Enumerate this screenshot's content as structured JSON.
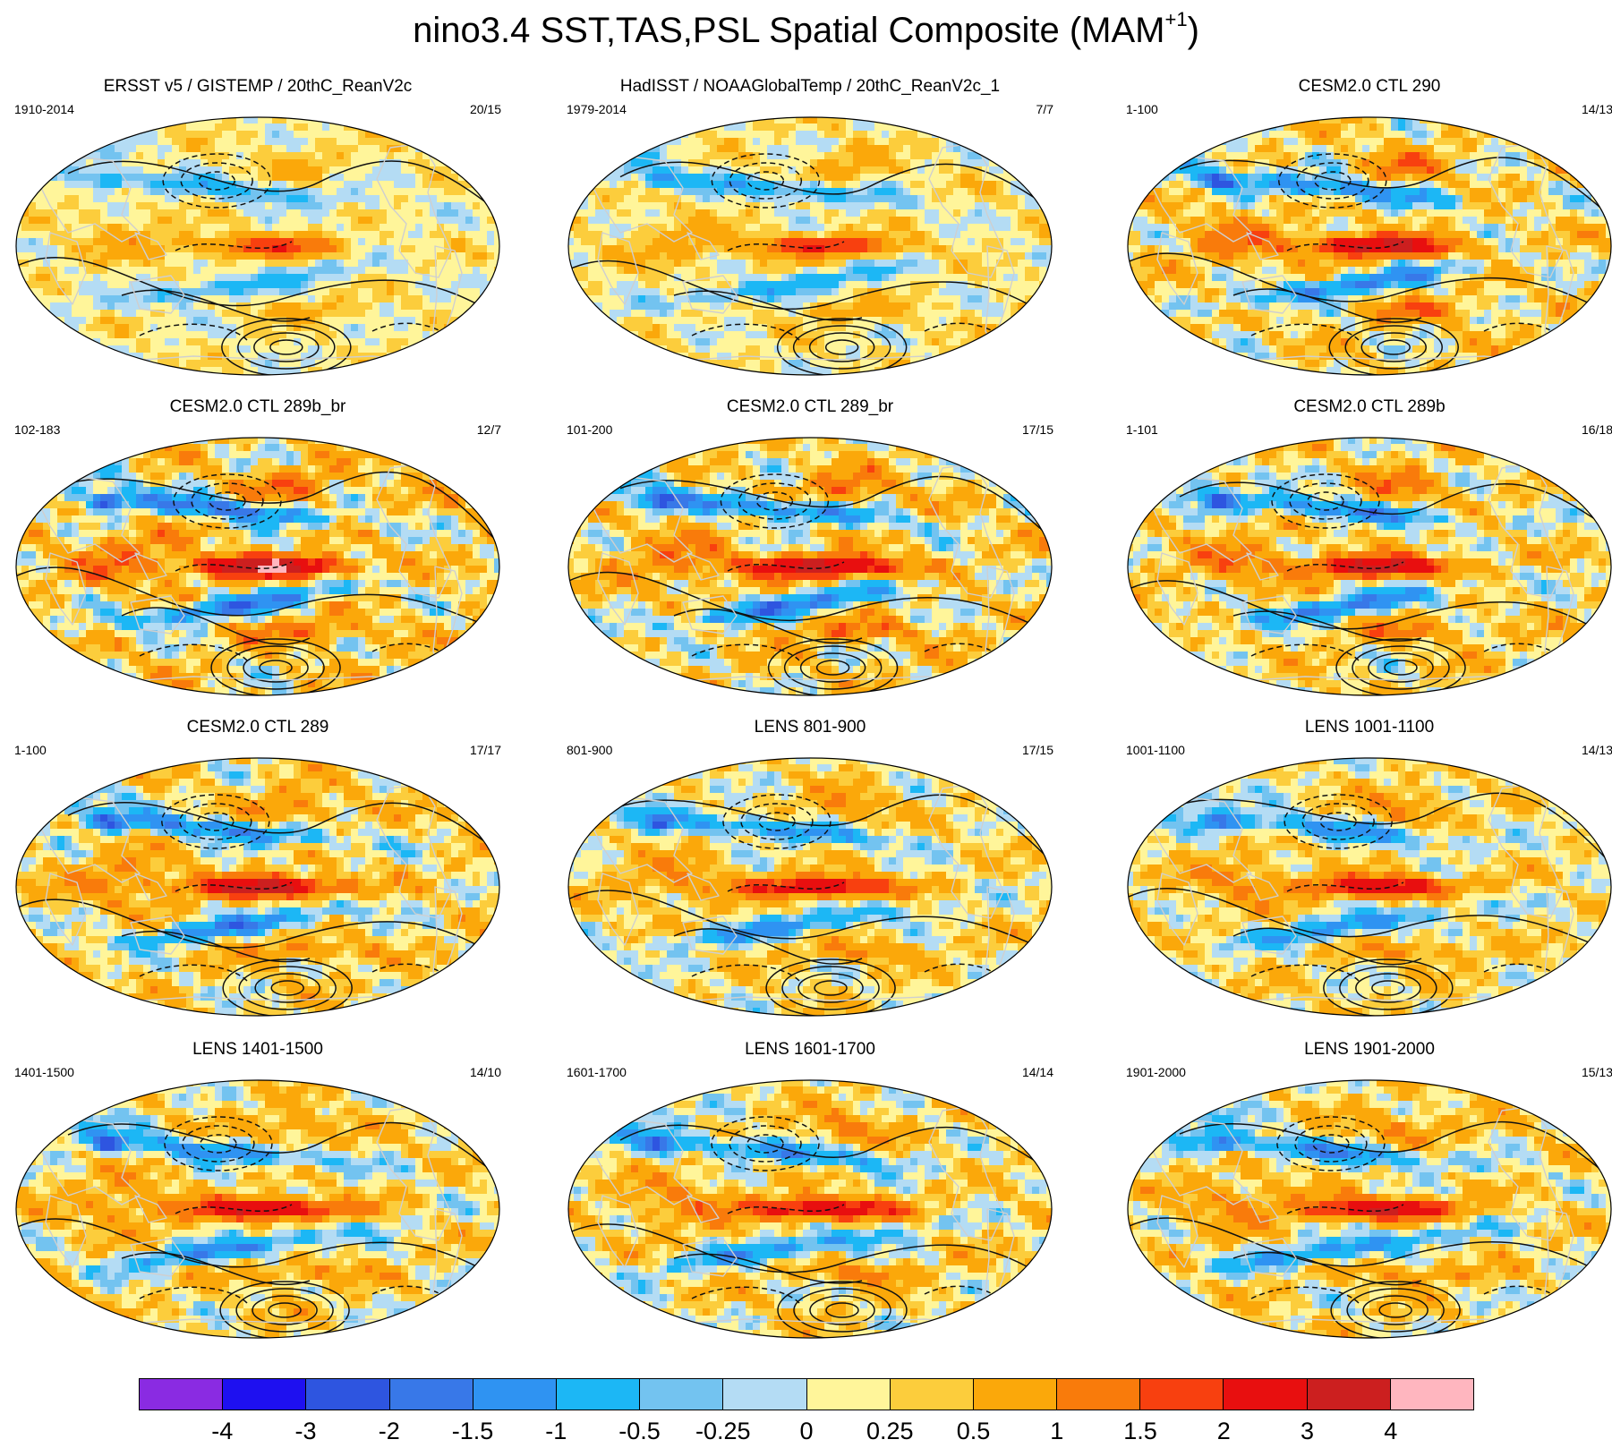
{
  "title": {
    "main": "nino3.4 SST,TAS,PSL Spatial Composite (MAM",
    "superscript": "+1",
    "close": ")"
  },
  "panels": [
    {
      "title": "ERSST v5 / GISTEMP / 20thC_ReanV2c",
      "left": "1910-2014",
      "right": "20/15",
      "intensity": 0.7
    },
    {
      "title": "HadISST / NOAAGlobalTemp / 20thC_ReanV2c_1",
      "left": "1979-2014",
      "right": "7/7",
      "intensity": 0.8
    },
    {
      "title": "CESM2.0 CTL 290",
      "left": "1-100",
      "right": "14/13",
      "intensity": 1.3
    },
    {
      "title": "CESM2.0 CTL 289b_br",
      "left": "102-183",
      "right": "12/7",
      "intensity": 1.5
    },
    {
      "title": "CESM2.0 CTL 289_br",
      "left": "101-200",
      "right": "17/15",
      "intensity": 1.4
    },
    {
      "title": "CESM2.0 CTL 289b",
      "left": "1-101",
      "right": "16/18",
      "intensity": 1.3
    },
    {
      "title": "CESM2.0 CTL 289",
      "left": "1-100",
      "right": "17/17",
      "intensity": 1.3
    },
    {
      "title": "LENS 801-900",
      "left": "801-900",
      "right": "17/15",
      "intensity": 1.1
    },
    {
      "title": "LENS 1001-1100",
      "left": "1001-1100",
      "right": "14/13",
      "intensity": 1.1
    },
    {
      "title": "LENS 1401-1500",
      "left": "1401-1500",
      "right": "14/10",
      "intensity": 1.2
    },
    {
      "title": "LENS 1601-1700",
      "left": "1601-1700",
      "right": "14/14",
      "intensity": 1.2
    },
    {
      "title": "LENS 1901-2000",
      "left": "1901-2000",
      "right": "15/13",
      "intensity": 1.2
    }
  ],
  "colorbar": {
    "colors": [
      "#8a2be2",
      "#1e10f0",
      "#2e55e0",
      "#3878e8",
      "#2f93f2",
      "#1cb7f5",
      "#73c3f0",
      "#b4dcf4",
      "#fff59a",
      "#fccd3c",
      "#fba80a",
      "#f97b0b",
      "#f8400f",
      "#e80f0f",
      "#cc1f1f",
      "#ffb6bf"
    ],
    "labels": [
      "-4",
      "-3",
      "-2",
      "-1.5",
      "-1",
      "-0.5",
      "-0.25",
      "0",
      "0.25",
      "0.5",
      "1",
      "1.5",
      "2",
      "3",
      "4"
    ]
  }
}
